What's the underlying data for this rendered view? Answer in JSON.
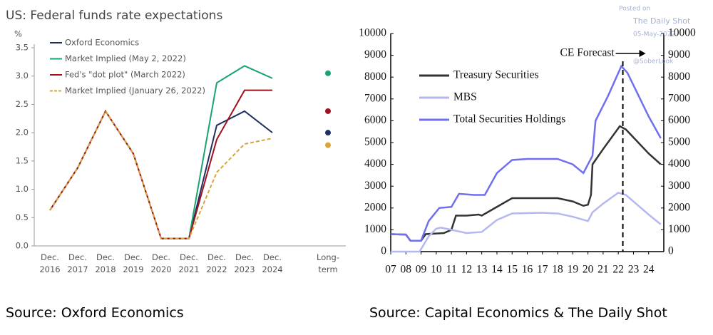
{
  "chart_data": [
    {
      "type": "line",
      "title": "US: Federal funds rate expectations",
      "y_label": "%",
      "categories": [
        "Dec. 2016",
        "Dec. 2017",
        "Dec. 2018",
        "Dec. 2019",
        "Dec. 2020",
        "Dec. 2021",
        "Dec. 2022",
        "Dec. 2023",
        "Dec. 2024"
      ],
      "series": [
        {
          "name": "Oxford Economics",
          "color": "#1f2f5f",
          "dashed": false,
          "values": [
            0.63,
            1.38,
            2.38,
            1.63,
            0.13,
            0.13,
            2.13,
            2.38,
            2.0
          ]
        },
        {
          "name": "Market Implied (May 2, 2022)",
          "color": "#1aa36f",
          "dashed": false,
          "values": [
            null,
            null,
            null,
            null,
            null,
            0.13,
            2.88,
            3.18,
            2.96
          ]
        },
        {
          "name": "Fed's \"dot plot\" (March 2022)",
          "color": "#a0121e",
          "dashed": false,
          "values": [
            0.63,
            1.38,
            2.38,
            1.63,
            0.13,
            0.13,
            1.88,
            2.75,
            2.75
          ]
        },
        {
          "name": "Market Implied (January 26, 2022)",
          "color": "#d9a53a",
          "dashed": true,
          "values": [
            0.63,
            1.38,
            2.38,
            1.63,
            0.13,
            0.13,
            1.3,
            1.8,
            1.9
          ]
        }
      ],
      "long_term": {
        "category": "Long-term",
        "values": [
          2.0,
          3.05,
          2.38,
          1.78
        ]
      },
      "ylim": [
        0,
        3.5
      ],
      "yticks": [
        {
          "value": 0,
          "label": "0.0"
        },
        0.5,
        {
          "value": 1,
          "label": "1.0"
        },
        1.5,
        {
          "value": 2,
          "label": "2.0"
        },
        2.5,
        {
          "value": 3,
          "label": "3.0"
        },
        3.5
      ]
    },
    {
      "type": "line",
      "series": [
        {
          "name": "Treasury Securities",
          "color": "#333333",
          "x": [
            2007,
            2008,
            2008.3,
            2009,
            2009.3,
            2010.5,
            2011,
            2011.3,
            2012,
            2012.8,
            2013,
            2014,
            2015,
            2017,
            2018,
            2019,
            2019.7,
            2020,
            2020.2,
            2020.3,
            2021,
            2022.1,
            2022.5,
            2024,
            2024.8
          ],
          "values": [
            800,
            780,
            500,
            500,
            800,
            850,
            1000,
            1650,
            1650,
            1700,
            1650,
            2050,
            2450,
            2450,
            2450,
            2300,
            2100,
            2150,
            2600,
            4000,
            4700,
            5750,
            5600,
            4500,
            4000
          ]
        },
        {
          "name": "MBS",
          "color": "#b5b8f0",
          "x": [
            2007,
            2008.9,
            2009.5,
            2010,
            2010.3,
            2011,
            2012,
            2013,
            2014,
            2015,
            2017,
            2018,
            2019,
            2020,
            2020.3,
            2021,
            2022,
            2022.5,
            2024,
            2024.8
          ],
          "values": [
            0,
            0,
            700,
            1050,
            1100,
            1000,
            850,
            900,
            1450,
            1750,
            1780,
            1750,
            1600,
            1400,
            1800,
            2200,
            2700,
            2600,
            1700,
            1250
          ]
        },
        {
          "name": "Total Securities Holdings",
          "color": "#6f6ff0",
          "x": [
            2007,
            2008,
            2008.3,
            2009,
            2009.5,
            2010.2,
            2011,
            2011.5,
            2012.5,
            2013.2,
            2014,
            2015,
            2016,
            2018,
            2019,
            2019.7,
            2020.3,
            2020.5,
            2021.3,
            2022.2,
            2022.6,
            2024,
            2024.8
          ],
          "values": [
            800,
            780,
            500,
            500,
            1400,
            2000,
            2050,
            2650,
            2600,
            2600,
            3600,
            4200,
            4250,
            4250,
            4000,
            3600,
            4400,
            6000,
            7100,
            8500,
            8200,
            6200,
            5200
          ]
        }
      ],
      "xlim": [
        2007,
        2025
      ],
      "xticks": [
        {
          "value": 2007,
          "label": "07"
        },
        {
          "value": 2008,
          "label": "08"
        },
        {
          "value": 2009,
          "label": "09"
        },
        10,
        11,
        12,
        13,
        14,
        15,
        16,
        17,
        18,
        19,
        20,
        21,
        22,
        23,
        24
      ],
      "xtick_base": 2000,
      "ylim": [
        0,
        10000
      ],
      "yticks": [
        0,
        1000,
        2000,
        3000,
        4000,
        5000,
        6000,
        7000,
        8000,
        9000,
        10000
      ],
      "y2lim": [
        0,
        10000
      ],
      "y2ticks": [
        0,
        1000,
        2000,
        3000,
        4000,
        5000,
        6000,
        7000,
        8000,
        9000,
        10000
      ],
      "annotation": {
        "text": "CE Forecast",
        "x": 2022.3
      }
    }
  ],
  "watermark": [
    "Posted on",
    "The Daily Shot",
    "05-May-2022",
    "@SoberLook"
  ],
  "sources": [
    "Source: Oxford Economics",
    "Source: Capital Economics & The Daily Shot"
  ]
}
